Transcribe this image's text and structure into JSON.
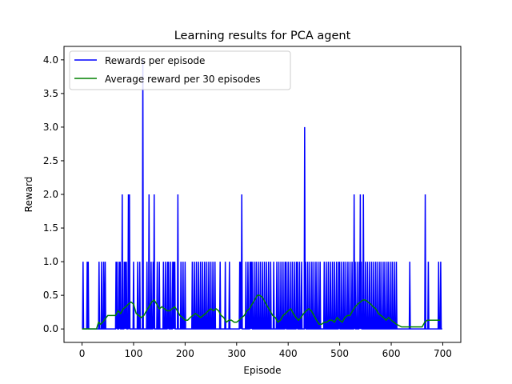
{
  "chart_data": {
    "type": "line",
    "title": "Learning results for PCA agent",
    "xlabel": "Episode",
    "ylabel": "Reward",
    "xlim": [
      -35,
      735
    ],
    "ylim": [
      -0.2,
      4.2
    ],
    "xticks": [
      0,
      100,
      200,
      300,
      400,
      500,
      600,
      700
    ],
    "yticks": [
      0.0,
      0.5,
      1.0,
      1.5,
      2.0,
      2.5,
      3.0,
      3.5,
      4.0
    ],
    "grid": false,
    "legend_position": "top-left",
    "series": [
      {
        "name": "Rewards per episode",
        "color": "#0000ff",
        "spike_episodes": {
          "1": [
            2,
            10,
            12,
            33,
            38,
            42,
            45,
            66,
            68,
            72,
            74,
            82,
            84,
            86,
            100,
            108,
            112,
            126,
            134,
            138,
            146,
            150,
            158,
            162,
            166,
            168,
            172,
            176,
            178,
            180,
            192,
            196,
            200,
            214,
            218,
            222,
            226,
            230,
            234,
            238,
            242,
            246,
            250,
            254,
            258,
            268,
            278,
            286,
            306,
            308,
            318,
            322,
            326,
            328,
            330,
            334,
            338,
            342,
            346,
            350,
            354,
            358,
            362,
            366,
            372,
            378,
            382,
            386,
            390,
            394,
            396,
            400,
            404,
            408,
            412,
            416,
            418,
            422,
            426,
            434,
            438,
            442,
            446,
            450,
            454,
            458,
            462,
            470,
            474,
            478,
            482,
            486,
            490,
            494,
            498,
            500,
            504,
            508,
            512,
            516,
            520,
            524,
            530,
            534,
            538,
            542,
            546,
            550,
            554,
            558,
            562,
            566,
            570,
            574,
            578,
            582,
            586,
            590,
            594,
            598,
            602,
            606,
            610,
            636,
            672,
            692,
            696
          ],
          "2": [
            78,
            90,
            92,
            130,
            140,
            186,
            310,
            528,
            540,
            546,
            666
          ],
          "3": [
            432
          ],
          "4": [
            118
          ]
        }
      },
      {
        "name": "Average reward per 30 episodes",
        "color": "#008000",
        "x": [
          0,
          10,
          20,
          28,
          32,
          36,
          40,
          50,
          60,
          65,
          70,
          75,
          80,
          85,
          90,
          95,
          100,
          105,
          110,
          115,
          120,
          125,
          130,
          135,
          140,
          145,
          150,
          155,
          160,
          165,
          170,
          175,
          180,
          185,
          190,
          195,
          200,
          205,
          210,
          215,
          220,
          225,
          230,
          235,
          240,
          245,
          250,
          255,
          260,
          265,
          270,
          275,
          280,
          285,
          290,
          295,
          300,
          305,
          310,
          315,
          320,
          325,
          330,
          335,
          340,
          345,
          350,
          355,
          360,
          365,
          370,
          375,
          380,
          385,
          390,
          395,
          400,
          405,
          410,
          415,
          420,
          425,
          430,
          435,
          440,
          445,
          450,
          455,
          460,
          465,
          470,
          475,
          480,
          485,
          490,
          495,
          500,
          505,
          510,
          515,
          520,
          525,
          530,
          535,
          540,
          545,
          550,
          555,
          560,
          565,
          570,
          575,
          580,
          585,
          590,
          595,
          600,
          605,
          610,
          620,
          630,
          640,
          650,
          660,
          665,
          670,
          675,
          680,
          685,
          690,
          695
        ],
        "y": [
          0.0,
          0.0,
          0.0,
          0.0,
          0.1,
          0.07,
          0.1,
          0.2,
          0.2,
          0.2,
          0.27,
          0.23,
          0.3,
          0.33,
          0.37,
          0.4,
          0.37,
          0.23,
          0.2,
          0.17,
          0.2,
          0.27,
          0.33,
          0.4,
          0.43,
          0.37,
          0.3,
          0.33,
          0.3,
          0.27,
          0.27,
          0.3,
          0.33,
          0.27,
          0.2,
          0.17,
          0.13,
          0.13,
          0.17,
          0.2,
          0.23,
          0.2,
          0.17,
          0.2,
          0.23,
          0.27,
          0.3,
          0.27,
          0.3,
          0.27,
          0.2,
          0.17,
          0.1,
          0.13,
          0.13,
          0.1,
          0.1,
          0.13,
          0.17,
          0.2,
          0.27,
          0.3,
          0.37,
          0.43,
          0.5,
          0.5,
          0.47,
          0.4,
          0.33,
          0.27,
          0.2,
          0.17,
          0.1,
          0.13,
          0.2,
          0.23,
          0.27,
          0.3,
          0.23,
          0.17,
          0.13,
          0.17,
          0.23,
          0.27,
          0.3,
          0.27,
          0.2,
          0.13,
          0.07,
          0.07,
          0.1,
          0.1,
          0.13,
          0.13,
          0.1,
          0.17,
          0.13,
          0.1,
          0.17,
          0.2,
          0.2,
          0.27,
          0.33,
          0.37,
          0.4,
          0.43,
          0.43,
          0.4,
          0.37,
          0.33,
          0.3,
          0.23,
          0.2,
          0.17,
          0.13,
          0.17,
          0.13,
          0.1,
          0.07,
          0.03,
          0.03,
          0.03,
          0.03,
          0.03,
          0.1,
          0.13,
          0.13,
          0.13,
          0.13,
          0.13,
          0.13
        ]
      }
    ]
  }
}
